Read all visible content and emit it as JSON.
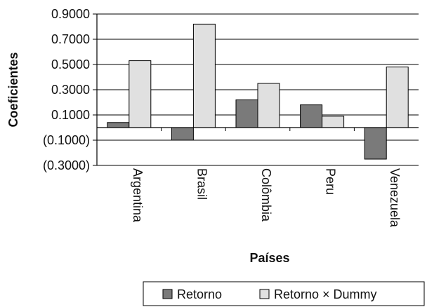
{
  "chart_data": {
    "type": "bar",
    "title": "",
    "xlabel": "Países",
    "ylabel": "Coeficientes",
    "categories": [
      "Argentina",
      "Brasil",
      "Colômbia",
      "Peru",
      "Venezuela"
    ],
    "series": [
      {
        "name": "Retorno",
        "values": [
          0.04,
          -0.1,
          0.22,
          0.18,
          -0.25
        ],
        "color": "#7a7a7a"
      },
      {
        "name": "Retorno × Dummy",
        "values": [
          0.53,
          0.82,
          0.35,
          0.09,
          0.48
        ],
        "color": "#e0e0e0"
      }
    ],
    "yticks": [
      0.9,
      0.7,
      0.5,
      0.3,
      0.1,
      -0.1,
      -0.3
    ],
    "ytick_labels": [
      "0.9000",
      "0.7000",
      "0.5000",
      "0.3000",
      "0.1000",
      "(0.1000)",
      "(0.3000)"
    ],
    "ylim": [
      -0.3,
      0.9
    ],
    "grid": true,
    "legend_position": "bottom"
  }
}
